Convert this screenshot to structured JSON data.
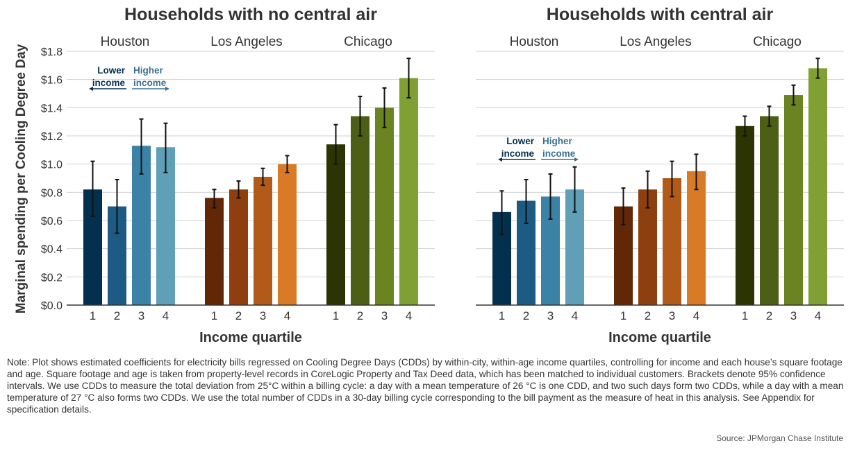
{
  "chart_data": [
    {
      "type": "bar",
      "title": "Households with no central air",
      "xlabel": "Income quartile",
      "ylabel": "Marginal spending per Cooling Degree Day",
      "ylim": [
        0,
        1.8
      ],
      "yticks": [
        "$0.0",
        "$0.2",
        "$0.4",
        "$0.6",
        "$0.8",
        "$1.0",
        "$1.2",
        "$1.4",
        "$1.6",
        "$1.8"
      ],
      "grid": true,
      "groups": [
        {
          "city": "Houston",
          "categories": [
            "1",
            "2",
            "3",
            "4"
          ],
          "values": [
            0.82,
            0.7,
            1.13,
            1.12
          ],
          "ci_low": [
            0.63,
            0.51,
            0.93,
            0.94
          ],
          "ci_high": [
            1.02,
            0.89,
            1.32,
            1.29
          ],
          "colors": [
            "#04304f",
            "#1d5b85",
            "#3a82a6",
            "#5f9fb7"
          ]
        },
        {
          "city": "Los Angeles",
          "categories": [
            "1",
            "2",
            "3",
            "4"
          ],
          "values": [
            0.76,
            0.82,
            0.91,
            1.0
          ],
          "ci_low": [
            0.69,
            0.76,
            0.85,
            0.94
          ],
          "ci_high": [
            0.82,
            0.88,
            0.97,
            1.06
          ],
          "colors": [
            "#612706",
            "#8d3f10",
            "#b25a1a",
            "#d97a26"
          ]
        },
        {
          "city": "Chicago",
          "categories": [
            "1",
            "2",
            "3",
            "4"
          ],
          "values": [
            1.14,
            1.34,
            1.4,
            1.61
          ],
          "ci_low": [
            1.0,
            1.2,
            1.26,
            1.47
          ],
          "ci_high": [
            1.28,
            1.48,
            1.54,
            1.75
          ],
          "colors": [
            "#2d3404",
            "#4d5e15",
            "#6a8422",
            "#80a034"
          ]
        }
      ],
      "annotation": {
        "lower": "Lower income",
        "higher": "Higher income",
        "lower_line1": "Lower",
        "lower_line2": "income",
        "higher_line1": "Higher",
        "higher_line2": "income"
      }
    },
    {
      "type": "bar",
      "title": "Households with central air",
      "xlabel": "Income quartile",
      "ylim": [
        0,
        1.8
      ],
      "grid": true,
      "groups": [
        {
          "city": "Houston",
          "categories": [
            "1",
            "2",
            "3",
            "4"
          ],
          "values": [
            0.66,
            0.74,
            0.77,
            0.82
          ],
          "ci_low": [
            0.5,
            0.58,
            0.61,
            0.66
          ],
          "ci_high": [
            0.81,
            0.89,
            0.93,
            0.98
          ],
          "colors": [
            "#04304f",
            "#1d5b85",
            "#3a82a6",
            "#5f9fb7"
          ]
        },
        {
          "city": "Los Angeles",
          "categories": [
            "1",
            "2",
            "3",
            "4"
          ],
          "values": [
            0.7,
            0.82,
            0.9,
            0.95
          ],
          "ci_low": [
            0.57,
            0.69,
            0.77,
            0.82
          ],
          "ci_high": [
            0.83,
            0.95,
            1.02,
            1.07
          ],
          "colors": [
            "#612706",
            "#8d3f10",
            "#b25a1a",
            "#d97a26"
          ]
        },
        {
          "city": "Chicago",
          "categories": [
            "1",
            "2",
            "3",
            "4"
          ],
          "values": [
            1.27,
            1.34,
            1.49,
            1.68
          ],
          "ci_low": [
            1.2,
            1.27,
            1.42,
            1.61
          ],
          "ci_high": [
            1.34,
            1.41,
            1.56,
            1.75
          ],
          "colors": [
            "#2d3404",
            "#4d5e15",
            "#6a8422",
            "#80a034"
          ]
        }
      ],
      "annotation": {
        "lower": "Lower income",
        "higher": "Higher income",
        "lower_line1": "Lower",
        "lower_line2": "income",
        "higher_line1": "Higher",
        "higher_line2": "income"
      }
    }
  ],
  "note": "Note: Plot shows estimated coefficients for electricity bills regressed on Cooling Degree Days (CDDs) by within-city, within-age income quartiles, controlling for income and each house’s square footage and age. Square footage and age is taken from property-level records in CoreLogic Property and Tax Deed data, which has been matched to individual customers. Brackets denote 95% confidence intervals. We use CDDs to measure the total deviation from 25°C within a billing cycle: a day with a mean temperature of 26 °C is one CDD, and two such days form two CDDs, while a day with a mean temperature of 27 °C also forms two CDDs. We use the total number of CDDs in a 30-day billing cycle corresponding to the bill payment as the measure of heat in this analysis. See Appendix for specification details.",
  "source": "Source: JPMorgan Chase Institute",
  "colors": {
    "text": "#333333",
    "grid": "#d0d0d0",
    "axis": "#333333",
    "lower_text": "#04304f",
    "higher_text": "#3a7090"
  }
}
